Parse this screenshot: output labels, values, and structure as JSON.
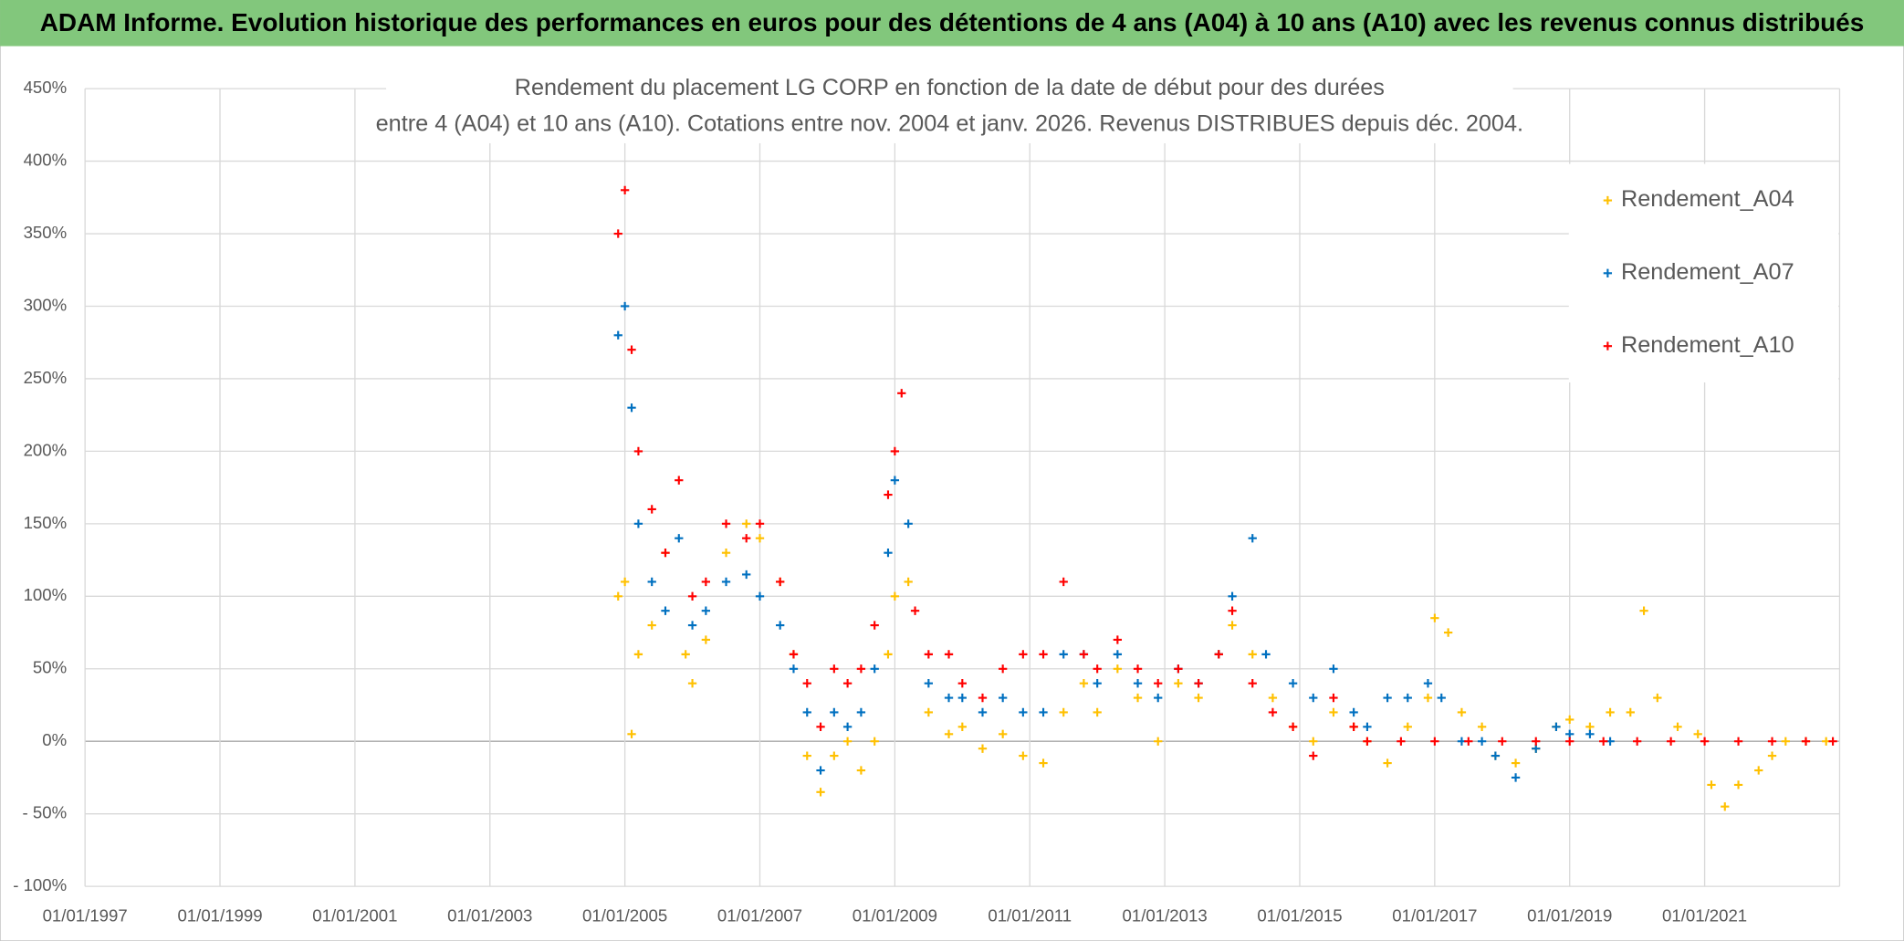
{
  "header": {
    "title": "ADAM Informe. Evolution historique des performances en euros pour des détentions de 4 ans (A04) à 10 ans (A10) avec les revenus connus distribués"
  },
  "chart_data": {
    "type": "scatter",
    "title_lines": [
      "Rendement du placement LG CORP en fonction de la date de début pour des durées",
      "entre 4 (A04) et 10 ans (A10). Cotations entre nov. 2004 et janv. 2026. Revenus DISTRIBUES depuis déc. 2004."
    ],
    "xlim": [
      1997,
      2023
    ],
    "xticks": [
      {
        "value": 1997,
        "label": "01/01/1997"
      },
      {
        "value": 1999,
        "label": "01/01/1999"
      },
      {
        "value": 2001,
        "label": "01/01/2001"
      },
      {
        "value": 2003,
        "label": "01/01/2003"
      },
      {
        "value": 2005,
        "label": "01/01/2005"
      },
      {
        "value": 2007,
        "label": "01/01/2007"
      },
      {
        "value": 2009,
        "label": "01/01/2009"
      },
      {
        "value": 2011,
        "label": "01/01/2011"
      },
      {
        "value": 2013,
        "label": "01/01/2013"
      },
      {
        "value": 2015,
        "label": "01/01/2015"
      },
      {
        "value": 2017,
        "label": "01/01/2017"
      },
      {
        "value": 2019,
        "label": "01/01/2019"
      },
      {
        "value": 2021,
        "label": "01/01/2021"
      }
    ],
    "ylim": [
      -100,
      450
    ],
    "yticks": [
      {
        "value": -100,
        "label": "- 100%"
      },
      {
        "value": -50,
        "label": "- 50%"
      },
      {
        "value": 0,
        "label": "0%"
      },
      {
        "value": 50,
        "label": "50%"
      },
      {
        "value": 100,
        "label": "100%"
      },
      {
        "value": 150,
        "label": "150%"
      },
      {
        "value": 200,
        "label": "200%"
      },
      {
        "value": 250,
        "label": "250%"
      },
      {
        "value": 300,
        "label": "300%"
      },
      {
        "value": 350,
        "label": "350%"
      },
      {
        "value": 400,
        "label": "400%"
      },
      {
        "value": 450,
        "label": "450%"
      }
    ],
    "grid": true,
    "legend": "top-right",
    "series": [
      {
        "name": "Rendement_A04",
        "color": "#ffc000",
        "x": [
          2004.9,
          2005.0,
          2005.1,
          2005.2,
          2005.4,
          2005.6,
          2005.9,
          2006.0,
          2006.2,
          2006.5,
          2006.8,
          2007.0,
          2007.3,
          2007.5,
          2007.7,
          2007.9,
          2008.1,
          2008.3,
          2008.5,
          2008.7,
          2008.9,
          2009.0,
          2009.2,
          2009.5,
          2009.8,
          2010.0,
          2010.3,
          2010.6,
          2010.9,
          2011.2,
          2011.5,
          2011.8,
          2012.0,
          2012.3,
          2012.6,
          2012.9,
          2013.2,
          2013.5,
          2013.8,
          2014.0,
          2014.3,
          2014.6,
          2014.9,
          2015.2,
          2015.5,
          2015.8,
          2016.0,
          2016.3,
          2016.6,
          2016.9,
          2017.0,
          2017.2,
          2017.4,
          2017.7,
          2017.9,
          2018.2,
          2018.5,
          2018.8,
          2019.0,
          2019.3,
          2019.6,
          2019.9,
          2020.1,
          2020.3,
          2020.6,
          2020.9,
          2021.1,
          2021.3,
          2021.5,
          2021.8,
          2022.0,
          2022.2,
          2022.5,
          2022.8
        ],
        "values": [
          100,
          110,
          5,
          60,
          80,
          130,
          60,
          40,
          70,
          130,
          150,
          140,
          110,
          60,
          -10,
          -35,
          -10,
          0,
          -20,
          0,
          60,
          100,
          110,
          20,
          5,
          10,
          -5,
          5,
          -10,
          -15,
          20,
          40,
          20,
          50,
          30,
          0,
          40,
          30,
          60,
          80,
          60,
          30,
          10,
          0,
          20,
          10,
          0,
          -15,
          10,
          30,
          85,
          75,
          20,
          10,
          -10,
          -15,
          -5,
          10,
          15,
          10,
          20,
          20,
          90,
          30,
          10,
          5,
          -30,
          -45,
          -30,
          -20,
          -10,
          0,
          0,
          0
        ]
      },
      {
        "name": "Rendement_A07",
        "color": "#0070c0",
        "x": [
          2004.9,
          2005.0,
          2005.1,
          2005.2,
          2005.4,
          2005.6,
          2005.8,
          2006.0,
          2006.2,
          2006.5,
          2006.8,
          2007.0,
          2007.3,
          2007.5,
          2007.7,
          2007.9,
          2008.1,
          2008.3,
          2008.5,
          2008.7,
          2008.9,
          2009.0,
          2009.2,
          2009.5,
          2009.8,
          2010.0,
          2010.3,
          2010.6,
          2010.9,
          2011.2,
          2011.5,
          2011.8,
          2012.0,
          2012.3,
          2012.6,
          2012.9,
          2013.2,
          2013.5,
          2013.8,
          2014.0,
          2014.3,
          2014.5,
          2014.9,
          2015.2,
          2015.5,
          2015.8,
          2016.0,
          2016.3,
          2016.6,
          2016.9,
          2017.1,
          2017.4,
          2017.7,
          2017.9,
          2018.2,
          2018.5,
          2018.8,
          2019.0,
          2019.3,
          2019.6
        ],
        "values": [
          280,
          300,
          230,
          150,
          110,
          90,
          140,
          80,
          90,
          110,
          115,
          100,
          80,
          50,
          20,
          -20,
          20,
          10,
          20,
          50,
          130,
          180,
          150,
          40,
          30,
          30,
          20,
          30,
          20,
          20,
          60,
          60,
          40,
          60,
          40,
          30,
          50,
          40,
          60,
          100,
          140,
          60,
          40,
          30,
          50,
          20,
          10,
          30,
          30,
          40,
          30,
          0,
          0,
          -10,
          -25,
          -5,
          10,
          5,
          5,
          0
        ]
      },
      {
        "name": "Rendement_A10",
        "color": "#ff0000",
        "x": [
          2004.9,
          2005.0,
          2005.1,
          2005.2,
          2005.4,
          2005.6,
          2005.8,
          2006.0,
          2006.2,
          2006.5,
          2006.8,
          2007.0,
          2007.3,
          2007.5,
          2007.7,
          2007.9,
          2008.1,
          2008.3,
          2008.5,
          2008.7,
          2008.9,
          2009.0,
          2009.1,
          2009.3,
          2009.5,
          2009.8,
          2010.0,
          2010.3,
          2010.6,
          2010.9,
          2011.2,
          2011.5,
          2011.8,
          2012.0,
          2012.3,
          2012.6,
          2012.9,
          2013.2,
          2013.5,
          2013.8,
          2014.0,
          2014.3,
          2014.6,
          2014.9,
          2015.2,
          2015.5,
          2015.8,
          2016.0,
          2016.5,
          2017.0,
          2017.5,
          2018.0,
          2018.5,
          2019.0,
          2019.5,
          2020.0,
          2020.5,
          2021.0,
          2021.5,
          2022.0,
          2022.5,
          2022.9
        ],
        "values": [
          350,
          380,
          270,
          200,
          160,
          130,
          180,
          100,
          110,
          150,
          140,
          150,
          110,
          60,
          40,
          10,
          50,
          40,
          50,
          80,
          170,
          200,
          240,
          90,
          60,
          60,
          40,
          30,
          50,
          60,
          60,
          110,
          60,
          50,
          70,
          50,
          40,
          50,
          40,
          60,
          90,
          40,
          20,
          10,
          -10,
          30,
          10,
          0,
          0,
          0,
          0,
          0,
          0,
          0,
          0,
          0,
          0,
          0,
          0,
          0,
          0,
          0
        ]
      }
    ]
  }
}
